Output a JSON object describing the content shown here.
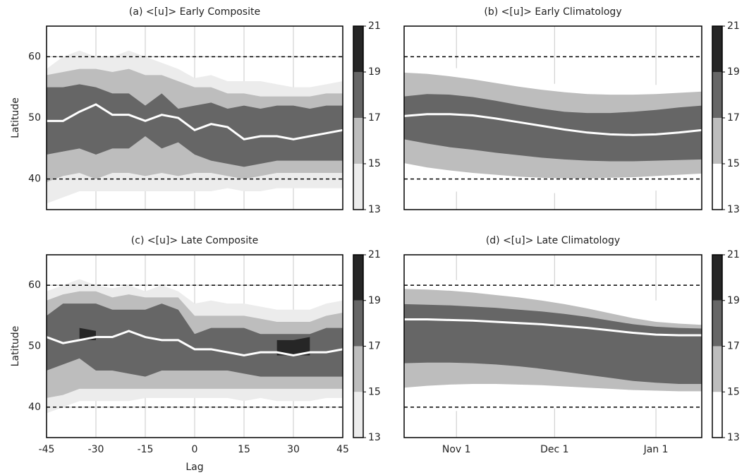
{
  "chart_data": [
    {
      "type": "band-contour",
      "title": "(a) <[u]> Early Composite",
      "ylabel": "Latitude",
      "x": [
        -45,
        -40,
        -35,
        -30,
        -25,
        -20,
        -15,
        -10,
        -5,
        0,
        5,
        10,
        15,
        20,
        25,
        30,
        35,
        40,
        45
      ],
      "xlim": [
        -45,
        45
      ],
      "xticks": [
        -45,
        -30,
        -15,
        0,
        15,
        30,
        45
      ],
      "show_xtick_labels": false,
      "ylim": [
        35,
        65
      ],
      "yticks": [
        40,
        50,
        60
      ],
      "grid": true,
      "reference_lines": [
        40,
        60
      ],
      "colorbar": {
        "ticks": [
          13,
          15,
          17,
          19,
          21
        ],
        "colors": [
          "#ececec",
          "#bdbdbd",
          "#666666",
          "#262626"
        ]
      },
      "bands": [
        {
          "upper": [
            58,
            60,
            61,
            60,
            60,
            61,
            60,
            59,
            58,
            56.5,
            57,
            56,
            56,
            56,
            55.5,
            55,
            55,
            55.5,
            56
          ],
          "lower": [
            36,
            37,
            38,
            38,
            38,
            38,
            38,
            38,
            38,
            38,
            38,
            38.5,
            38,
            38,
            38.5,
            38.5,
            38.5,
            38.5,
            38.5
          ]
        },
        {
          "upper": [
            57,
            57.5,
            58,
            58,
            57.5,
            58,
            57,
            57,
            56,
            55,
            55,
            54,
            54,
            53.5,
            53.5,
            53.5,
            53.5,
            54,
            54
          ],
          "lower": [
            39.5,
            40.5,
            41,
            40,
            41,
            41,
            40.5,
            41,
            40.5,
            41,
            41,
            40.5,
            40,
            40.5,
            41,
            41,
            41,
            41,
            41
          ]
        },
        {
          "upper": [
            55,
            55,
            55.5,
            55,
            54,
            54,
            52,
            54,
            51.5,
            52,
            52.5,
            51.5,
            52,
            51.5,
            52,
            52,
            51.5,
            52,
            52
          ],
          "lower": [
            44,
            44.5,
            45,
            44,
            45,
            45,
            47,
            45,
            46,
            44,
            43,
            42.5,
            42,
            42.5,
            43,
            43,
            43,
            43,
            43
          ]
        }
      ],
      "jet": {
        "color": "#ffffff",
        "values": [
          49.5,
          49.5,
          51,
          52.2,
          50.5,
          50.5,
          49.5,
          50.5,
          50,
          48,
          49,
          48.5,
          46.5,
          47,
          47,
          46.5,
          47,
          47.5,
          48
        ]
      }
    },
    {
      "type": "band-contour",
      "title": "(b) <[u]> Early Climatology",
      "x": [
        15,
        22,
        29,
        36,
        43,
        50,
        57,
        64,
        71,
        78,
        85,
        92,
        99,
        106
      ],
      "xlim": [
        15,
        106
      ],
      "xticks": [
        31,
        61,
        92
      ],
      "show_xtick_labels": false,
      "ylim": [
        35,
        65
      ],
      "grid": true,
      "reference_lines": [
        40,
        60
      ],
      "colorbar": {
        "ticks": [
          13,
          15,
          17,
          19,
          21
        ],
        "colors": [
          "#ffffff",
          "#bdbdbd",
          "#666666",
          "#262626"
        ]
      },
      "bands": [
        {
          "upper": [
            59.0,
            58.8,
            58.3,
            57.7,
            57.0,
            56.3,
            55.8,
            55.4,
            55.2,
            55.1,
            55.2,
            55.4,
            55.7,
            55.9
          ],
          "lower": [
            38.8,
            38.3,
            38.0,
            37.8,
            37.7,
            37.7,
            37.7,
            37.7,
            37.8,
            37.9,
            38.0,
            38.1,
            38.3,
            38.5
          ]
        },
        {
          "upper": [
            57.4,
            57.2,
            56.8,
            56.3,
            55.7,
            55.1,
            54.6,
            54.2,
            53.9,
            53.8,
            53.8,
            53.9,
            54.1,
            54.3
          ],
          "lower": [
            42.6,
            41.9,
            41.4,
            41.0,
            40.7,
            40.4,
            40.2,
            40.1,
            40.1,
            40.2,
            40.3,
            40.5,
            40.7,
            40.9
          ]
        },
        {
          "upper": [
            53.5,
            53.9,
            53.8,
            53.4,
            52.8,
            52.1,
            51.5,
            51.0,
            50.8,
            50.8,
            51.0,
            51.3,
            51.7,
            52.0
          ],
          "lower": [
            46.5,
            45.8,
            45.2,
            44.8,
            44.3,
            43.9,
            43.5,
            43.2,
            43.0,
            42.9,
            42.9,
            43.0,
            43.1,
            43.2
          ]
        }
      ],
      "jet": {
        "color": "#ffffff",
        "values": [
          50.3,
          50.6,
          50.6,
          50.4,
          49.9,
          49.3,
          48.7,
          48.1,
          47.6,
          47.3,
          47.2,
          47.3,
          47.6,
          48.0
        ]
      }
    },
    {
      "type": "band-contour",
      "title": "(c) <[u]> Late Composite",
      "ylabel": "Latitude",
      "xlabel": "Lag",
      "x": [
        -45,
        -40,
        -35,
        -30,
        -25,
        -20,
        -15,
        -10,
        -5,
        0,
        5,
        10,
        15,
        20,
        25,
        30,
        35,
        40,
        45
      ],
      "xlim": [
        -45,
        45
      ],
      "xticks": [
        -45,
        -30,
        -15,
        0,
        15,
        30,
        45
      ],
      "show_xtick_labels": true,
      "ylim": [
        35,
        65
      ],
      "yticks": [
        40,
        50,
        60
      ],
      "grid": true,
      "reference_lines": [
        40,
        60
      ],
      "colorbar": {
        "ticks": [
          13,
          15,
          17,
          19,
          21
        ],
        "colors": [
          "#ececec",
          "#bdbdbd",
          "#666666",
          "#262626"
        ]
      },
      "bands": [
        {
          "upper": [
            59,
            60,
            61,
            60,
            59.5,
            60,
            59,
            60,
            59,
            57,
            57.5,
            57,
            57,
            56.5,
            56,
            56,
            56,
            57,
            57.5
          ],
          "lower": [
            39,
            40,
            41,
            41,
            41,
            41,
            41.5,
            41.5,
            41.5,
            41.5,
            41.5,
            41.5,
            41,
            41.5,
            41,
            41,
            41,
            41.5,
            41.5
          ]
        },
        {
          "upper": [
            57.5,
            58.5,
            59,
            59,
            58,
            58.5,
            58,
            58,
            58,
            55,
            55,
            55,
            55,
            54.5,
            54,
            54,
            54,
            55,
            55.5
          ],
          "lower": [
            41.5,
            42,
            43,
            43,
            43,
            43,
            43,
            43,
            43,
            43,
            43,
            43,
            43,
            43,
            43,
            43,
            43,
            43,
            43
          ]
        },
        {
          "upper": [
            55,
            57,
            57,
            57,
            56,
            56,
            56,
            57,
            56,
            52,
            53,
            53,
            53,
            52,
            52,
            52,
            52,
            53,
            53
          ],
          "lower": [
            46,
            47,
            48,
            46,
            46,
            45.5,
            45,
            46,
            46,
            46,
            46,
            46,
            45.5,
            45,
            45,
            45,
            45,
            45,
            45
          ]
        },
        {
          "upper": [
            null,
            null,
            53,
            52.5,
            null,
            null,
            null,
            null,
            null,
            null,
            null,
            null,
            null,
            null,
            51,
            51,
            51.5,
            null,
            null
          ],
          "lower": [
            null,
            null,
            51,
            51,
            null,
            null,
            null,
            null,
            null,
            null,
            null,
            null,
            null,
            null,
            48.5,
            48.5,
            48.5,
            null,
            null
          ]
        }
      ],
      "jet": {
        "color": "#ffffff",
        "values": [
          51.5,
          50.5,
          51,
          51.5,
          51.5,
          52.5,
          51.5,
          51,
          51,
          49.5,
          49.5,
          49,
          48.5,
          49,
          49,
          48.5,
          49,
          49,
          49.5
        ]
      }
    },
    {
      "type": "band-contour",
      "title": "(d) <[u]> Late Climatology",
      "x": [
        15,
        22,
        29,
        36,
        43,
        50,
        57,
        64,
        71,
        78,
        85,
        92,
        99,
        106
      ],
      "xlim": [
        15,
        106
      ],
      "xticks": [
        {
          "value": 31,
          "label": "Nov 1"
        },
        {
          "value": 61,
          "label": "Dec 1"
        },
        {
          "value": 92,
          "label": "Jan 1"
        }
      ],
      "show_xtick_labels": true,
      "ylim": [
        35,
        65
      ],
      "grid": true,
      "reference_lines": [
        40,
        60
      ],
      "colorbar": {
        "ticks": [
          13,
          15,
          17,
          19,
          21
        ],
        "colors": [
          "#ffffff",
          "#bdbdbd",
          "#666666",
          "#262626"
        ]
      },
      "bands": [
        {
          "upper": [
            61.1,
            61.0,
            60.9,
            60.7,
            60.5,
            60.3,
            60.0,
            59.6,
            59.1,
            58.5,
            57.9,
            57.5,
            57.2,
            57.1
          ],
          "lower": [
            38.6,
            39.0,
            39.3,
            39.5,
            39.7,
            39.8,
            39.8,
            39.8,
            39.8,
            39.8,
            39.8,
            39.8,
            39.8,
            39.8
          ]
        },
        {
          "upper": [
            59.4,
            59.3,
            59.1,
            58.8,
            58.4,
            58.0,
            57.5,
            56.9,
            56.2,
            55.4,
            54.6,
            54.0,
            53.7,
            53.5
          ],
          "lower": [
            43.2,
            43.5,
            43.7,
            43.8,
            43.8,
            43.7,
            43.6,
            43.4,
            43.2,
            43.0,
            42.8,
            42.7,
            42.6,
            42.6
          ]
        },
        {
          "upper": [
            56.9,
            56.8,
            56.7,
            56.5,
            56.3,
            56.0,
            55.7,
            55.3,
            54.8,
            54.2,
            53.6,
            53.2,
            53.0,
            52.9
          ],
          "lower": [
            47.2,
            47.3,
            47.3,
            47.2,
            47.0,
            46.7,
            46.3,
            45.8,
            45.3,
            44.8,
            44.3,
            44.0,
            43.8,
            43.8
          ]
        }
      ],
      "jet": {
        "color": "#ffffff",
        "values": [
          54.4,
          54.4,
          54.3,
          54.2,
          54.0,
          53.8,
          53.6,
          53.3,
          53.0,
          52.6,
          52.2,
          51.9,
          51.8,
          51.8
        ]
      }
    }
  ]
}
